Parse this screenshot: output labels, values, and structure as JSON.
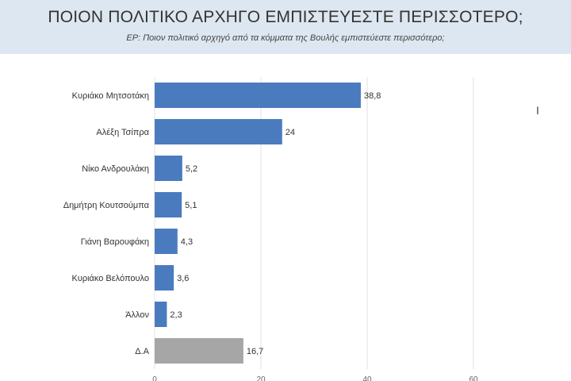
{
  "chart_data": {
    "type": "bar",
    "orientation": "horizontal",
    "title": "ΠΟΙΟΝ ΠΟΛΙΤΙΚΟ ΑΡΧΗΓΟ ΕΜΠΙΣΤΕΥΕΣΤΕ ΠΕΡΙΣΣΟΤΕΡΟ;",
    "subtitle": "ΕΡ: Ποιον πολιτικό αρχηγό από τα κόμματα της Βουλής εμπιστεύεστε περισσότερο;",
    "categories": [
      "Κυριάκο Μητσοτάκη",
      "Αλέξη Τσίπρα",
      "Νίκο Ανδρουλάκη",
      "Δημήτρη Κουτσούμπα",
      "Γιάνη Βαρουφάκη",
      "Κυριάκο Βελόπουλο",
      "Άλλον",
      "Δ.Α"
    ],
    "values": [
      38.8,
      24,
      5.2,
      5.1,
      4.3,
      3.6,
      2.3,
      16.7
    ],
    "labels": [
      "38,8",
      "24",
      "5,2",
      "5,1",
      "4,3",
      "3,6",
      "2,3",
      "16,7"
    ],
    "colors": [
      "#4a7bbf",
      "#4a7bbf",
      "#4a7bbf",
      "#4a7bbf",
      "#4a7bbf",
      "#4a7bbf",
      "#4a7bbf",
      "#a6a6a6"
    ],
    "xticks": [
      0,
      20,
      40,
      60
    ],
    "xlim": [
      0,
      60
    ],
    "grid": true,
    "xlabel": "",
    "ylabel": ""
  }
}
